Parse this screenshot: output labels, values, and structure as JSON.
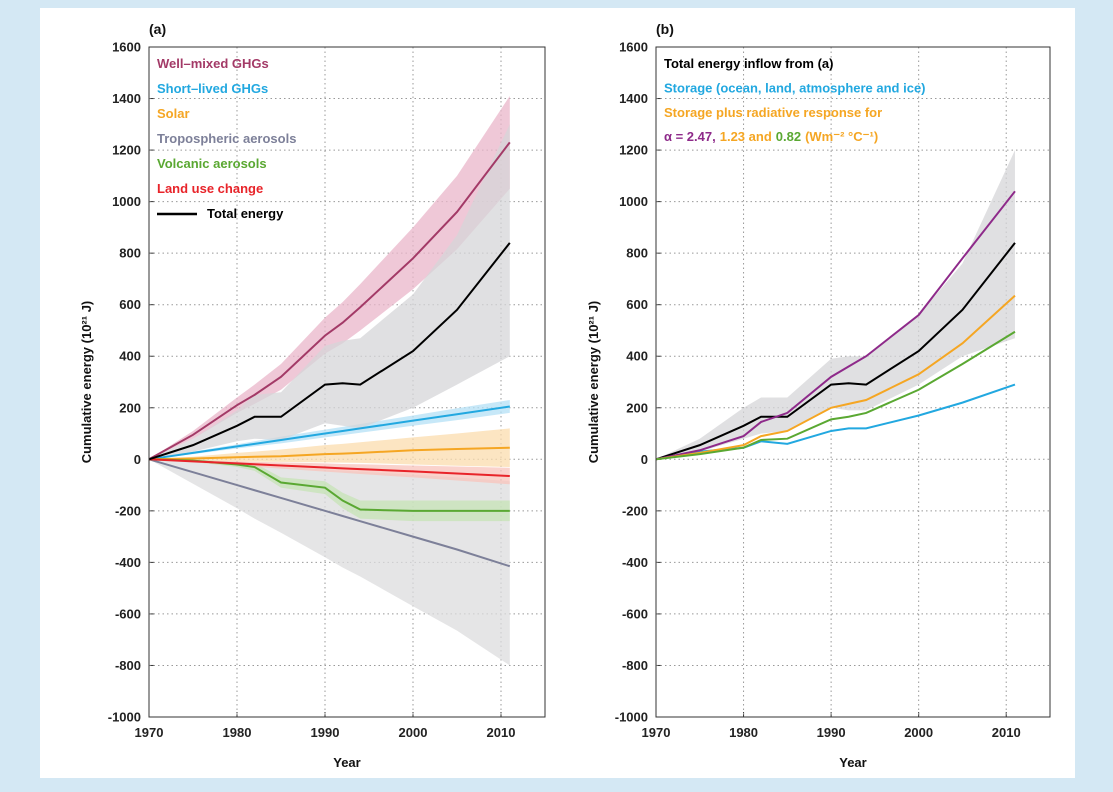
{
  "chart_data": [
    {
      "type": "line",
      "title": "(a)",
      "xlabel": "Year",
      "ylabel": "Cumulative energy (10²¹ J)",
      "xlim": [
        1970,
        2015
      ],
      "xticks": [
        1970,
        1980,
        1990,
        2000,
        2010
      ],
      "ylim": [
        -1000,
        1600
      ],
      "yticks": [
        -1000,
        -800,
        -600,
        -400,
        -200,
        0,
        200,
        400,
        600,
        800,
        1000,
        1200,
        1400,
        1600
      ],
      "grid": true,
      "x": [
        1970,
        1975,
        1980,
        1982,
        1985,
        1990,
        1992,
        1994,
        2000,
        2005,
        2011
      ],
      "series": [
        {
          "name": "Well–mixed GHGs",
          "color": "#a33a67",
          "values": [
            0,
            95,
            210,
            250,
            320,
            480,
            530,
            590,
            780,
            960,
            1230
          ],
          "band": {
            "color": "#e9b5ca",
            "lower": [
              0,
              80,
              180,
              215,
              270,
              410,
              450,
              500,
              660,
              815,
              1050
            ],
            "upper": [
              0,
              110,
              240,
              290,
              370,
              550,
              610,
              680,
              900,
              1100,
              1410
            ]
          }
        },
        {
          "name": "Short–lived GHGs",
          "color": "#22a8e0",
          "values": [
            0,
            25,
            50,
            60,
            75,
            100,
            110,
            120,
            150,
            175,
            205
          ],
          "band": {
            "color": "#b4e0f5",
            "lower": [
              0,
              20,
              42,
              50,
              62,
              85,
              94,
              103,
              130,
              152,
              180
            ],
            "upper": [
              0,
              30,
              58,
              70,
              88,
              115,
              126,
              137,
              170,
              198,
              230
            ]
          }
        },
        {
          "name": "Solar",
          "color": "#f5a623",
          "values": [
            0,
            3,
            8,
            10,
            12,
            20,
            22,
            25,
            35,
            40,
            45
          ],
          "band": {
            "color": "#fbdcae",
            "lower": [
              0,
              -3,
              -8,
              -9,
              -10,
              -12,
              -13,
              -14,
              -20,
              -25,
              -30
            ],
            "upper": [
              0,
              10,
              25,
              30,
              38,
              55,
              60,
              66,
              85,
              100,
              120
            ]
          }
        },
        {
          "name": "Tropospheric aerosols",
          "color": "#7d8099",
          "values": [
            0,
            -50,
            -100,
            -120,
            -150,
            -200,
            -220,
            -240,
            -300,
            -350,
            -415
          ],
          "band": {
            "color": "#dcdcde",
            "lower": [
              0,
              -95,
              -190,
              -230,
              -285,
              -380,
              -420,
              -455,
              -570,
              -665,
              -800
            ],
            "upper": [
              0,
              -10,
              -20,
              -24,
              -30,
              -40,
              -44,
              -48,
              -60,
              -70,
              -85
            ]
          }
        },
        {
          "name": "Volcanic aerosols",
          "color": "#5aa832",
          "values": [
            0,
            -5,
            -20,
            -30,
            -90,
            -110,
            -160,
            -195,
            -200,
            -200,
            -200
          ],
          "band": {
            "color": "#c6e3b6",
            "lower": [
              0,
              -10,
              -30,
              -45,
              -110,
              -135,
              -190,
              -230,
              -240,
              -240,
              -240
            ],
            "upper": [
              0,
              0,
              -10,
              -15,
              -70,
              -85,
              -130,
              -160,
              -160,
              -160,
              -160
            ]
          }
        },
        {
          "name": "Land use change",
          "color": "#e8242a",
          "values": [
            0,
            -8,
            -16,
            -19,
            -24,
            -32,
            -35,
            -38,
            -47,
            -55,
            -65
          ],
          "band": {
            "color": "#f8c3bb",
            "lower": [
              0,
              -12,
              -24,
              -29,
              -36,
              -48,
              -52,
              -57,
              -70,
              -82,
              -97
            ],
            "upper": [
              0,
              -4,
              -8,
              -10,
              -12,
              -16,
              -18,
              -19,
              -24,
              -28,
              -33
            ]
          }
        },
        {
          "name": "Total energy",
          "color": "#000000",
          "legend_swatch": true,
          "values": [
            0,
            55,
            130,
            165,
            165,
            290,
            295,
            290,
            420,
            580,
            840
          ],
          "band": {
            "color": "#d6d6d8",
            "lower": [
              0,
              30,
              70,
              80,
              75,
              140,
              130,
              120,
              200,
              290,
              400
            ],
            "upper": [
              0,
              80,
              190,
              250,
              260,
              440,
              460,
              470,
              640,
              870,
              1300
            ]
          }
        }
      ]
    },
    {
      "type": "line",
      "title": "(b)",
      "xlabel": "Year",
      "ylabel": "Cumulative energy (10²¹ J)",
      "xlim": [
        1970,
        2015
      ],
      "xticks": [
        1970,
        1980,
        1990,
        2000,
        2010
      ],
      "ylim": [
        -1000,
        1600
      ],
      "yticks": [
        -1000,
        -800,
        -600,
        -400,
        -200,
        0,
        200,
        400,
        600,
        800,
        1000,
        1200,
        1400,
        1600
      ],
      "grid": true,
      "legend_note": "Storage plus radiative response for",
      "units_note": "(Wm⁻² °C⁻¹)",
      "x": [
        1970,
        1975,
        1980,
        1982,
        1985,
        1990,
        1992,
        1994,
        2000,
        2005,
        2011
      ],
      "series": [
        {
          "name": "Total energy inflow from (a)",
          "color": "#000000",
          "values": [
            0,
            55,
            130,
            165,
            165,
            290,
            295,
            290,
            420,
            580,
            840
          ],
          "band": {
            "color": "#d6d6d8",
            "lower": [
              0,
              30,
              80,
              100,
              110,
              200,
              190,
              190,
              290,
              400,
              470
            ],
            "upper": [
              0,
              80,
              200,
              240,
              240,
              390,
              400,
              400,
              560,
              760,
              1200
            ]
          }
        },
        {
          "name": "Storage (ocean, land, atmosphere and ice)",
          "color": "#22a8e0",
          "values": [
            0,
            30,
            45,
            70,
            60,
            110,
            120,
            120,
            170,
            220,
            290
          ]
        },
        {
          "name": "α = 2.47,",
          "color": "#8e2a8a",
          "values": [
            0,
            35,
            90,
            145,
            180,
            320,
            360,
            400,
            560,
            780,
            1040
          ]
        },
        {
          "name": "1.23 and",
          "color": "#f5a623",
          "values": [
            0,
            25,
            55,
            90,
            110,
            200,
            215,
            230,
            330,
            450,
            635
          ]
        },
        {
          "name": "0.82",
          "color": "#5aa832",
          "values": [
            0,
            20,
            45,
            75,
            80,
            155,
            165,
            180,
            270,
            370,
            495
          ]
        }
      ]
    }
  ]
}
